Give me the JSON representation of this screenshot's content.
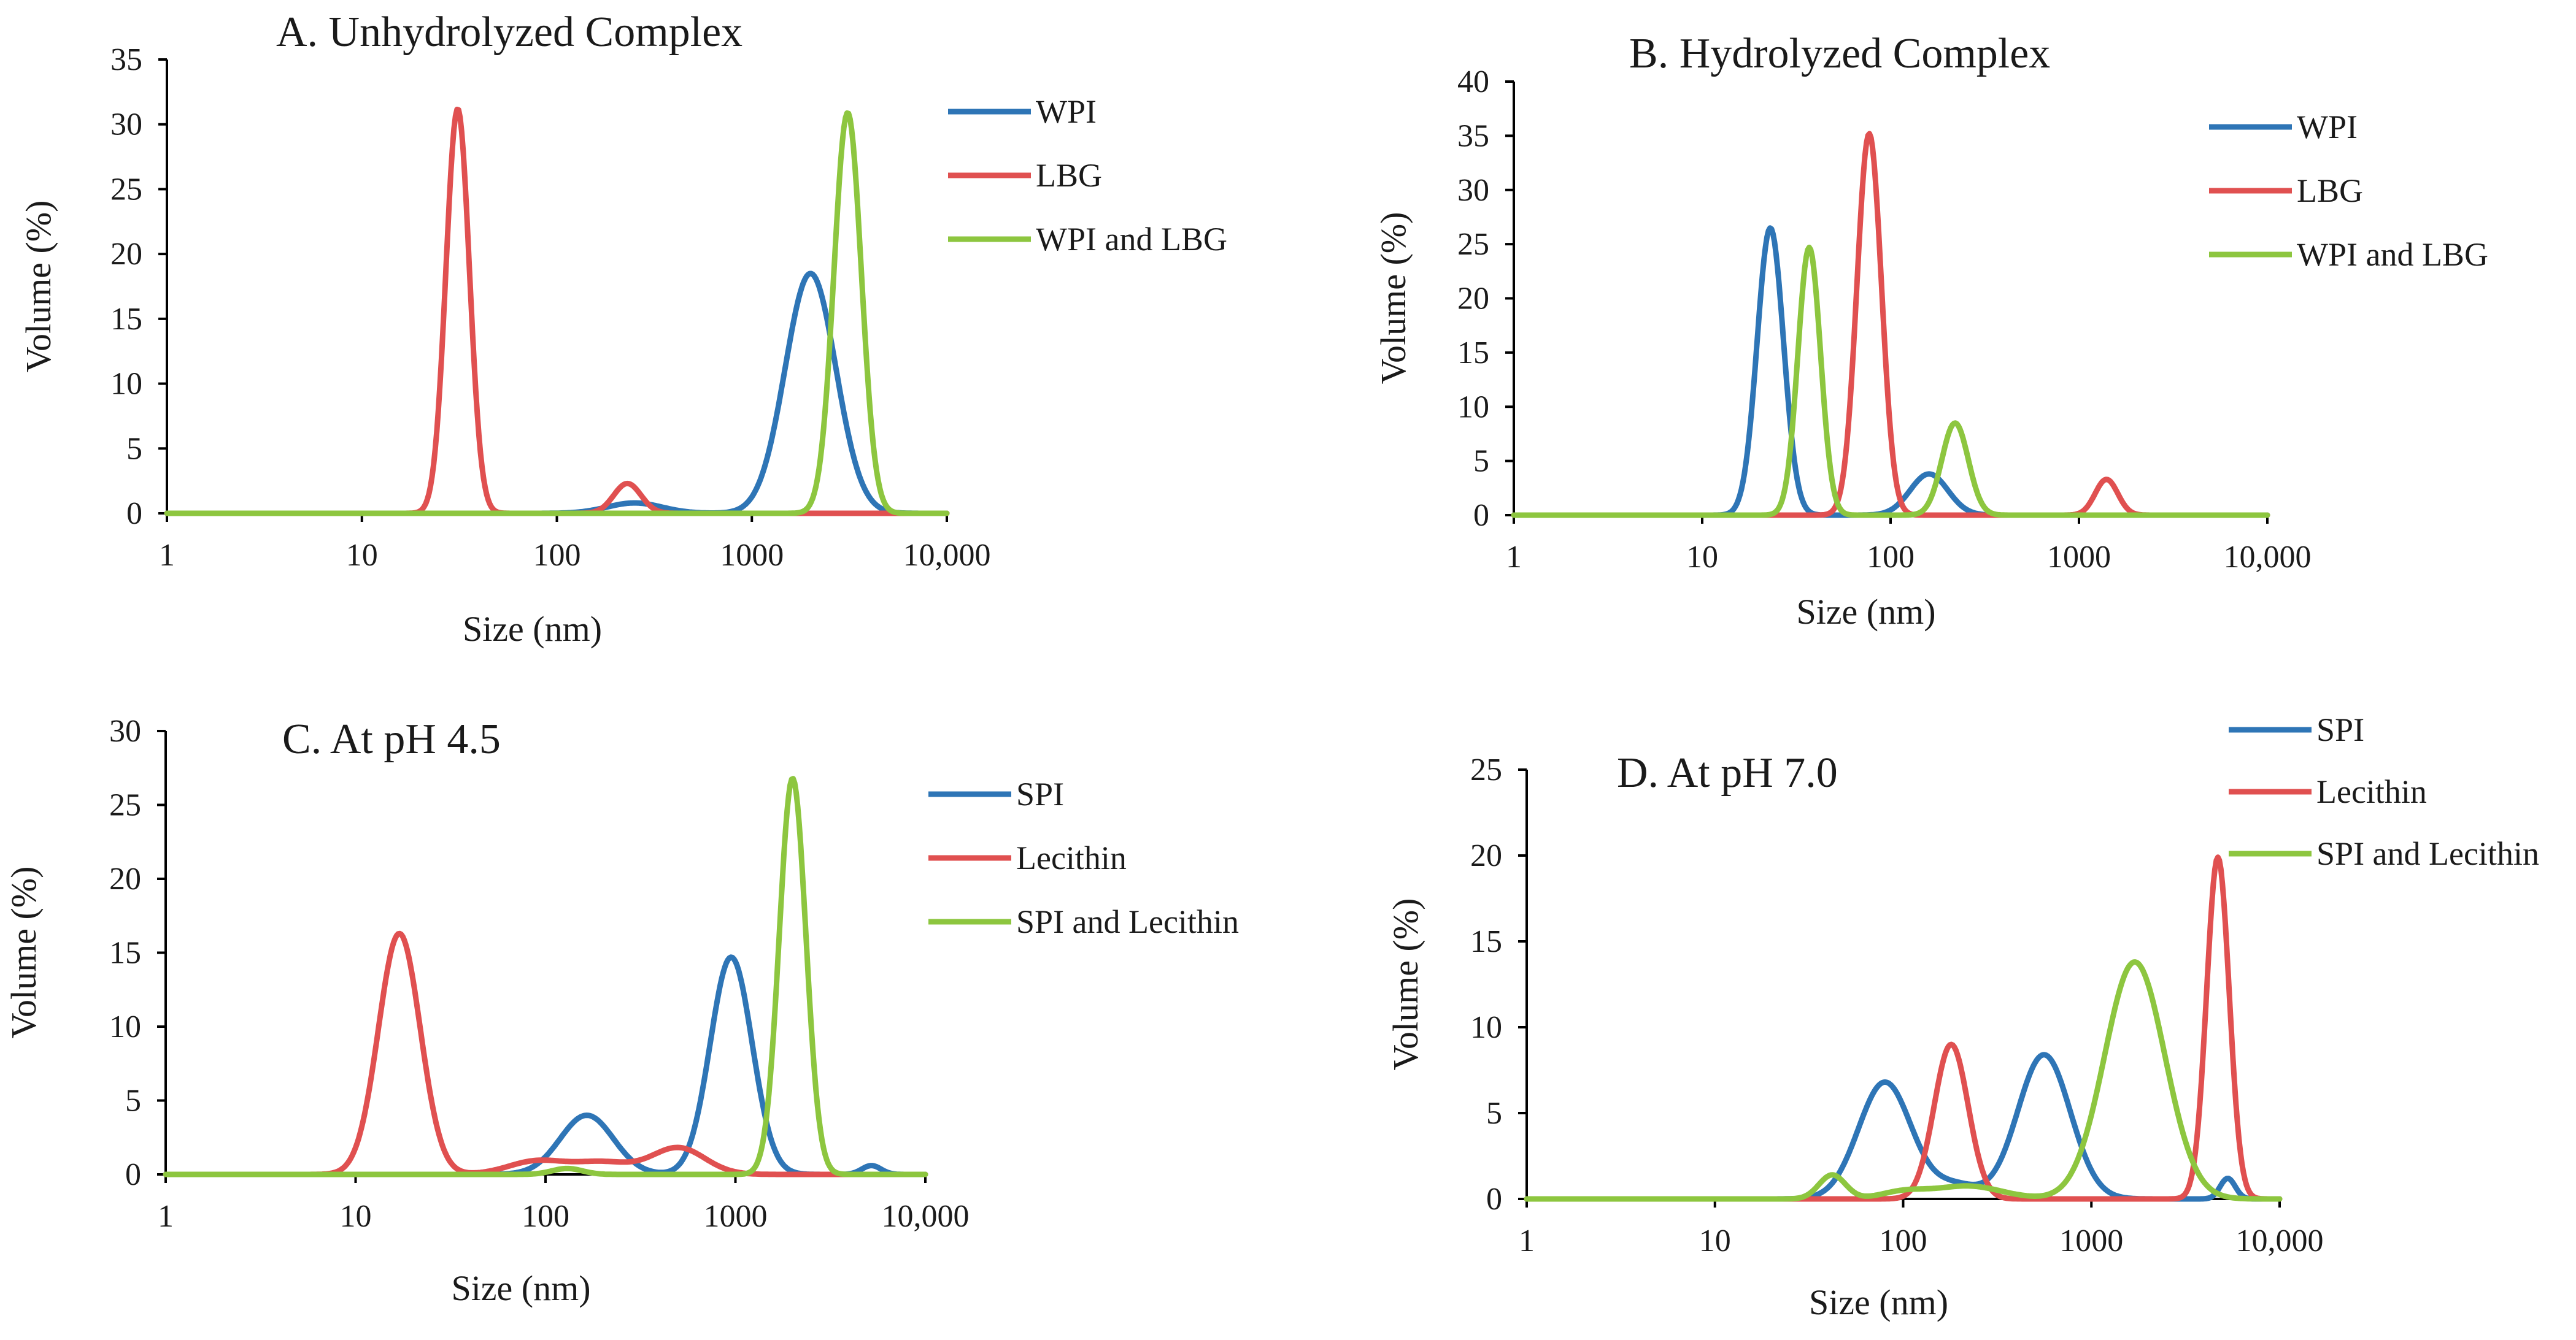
{
  "chart_data": [
    {
      "type": "line",
      "title": "A.  Unhydrolyzed Complex",
      "xlabel": "Size (nm)",
      "ylabel": "Volume (%)",
      "xscale": "log",
      "xlim": [
        1,
        10000
      ],
      "ylim": [
        0,
        35
      ],
      "xticks": [
        1,
        10,
        100,
        1000,
        10000
      ],
      "xtick_labels": [
        "1",
        "10",
        "100",
        "1000",
        "10,000"
      ],
      "yticks": [
        0,
        5,
        10,
        15,
        20,
        25,
        30,
        35
      ],
      "legend_position": "top-right",
      "series": [
        {
          "name": "WPI",
          "color": "#2E75B6",
          "peaks": [
            {
              "center": 250,
              "height": 0.8,
              "width": 0.14
            },
            {
              "center": 2000,
              "height": 18.5,
              "width": 0.13
            }
          ]
        },
        {
          "name": "LBG",
          "color": "#E05050",
          "peaks": [
            {
              "center": 31,
              "height": 31.2,
              "width": 0.06
            },
            {
              "center": 230,
              "height": 2.3,
              "width": 0.07
            }
          ]
        },
        {
          "name": "WPI and LBG",
          "color": "#8DC63F",
          "peaks": [
            {
              "center": 3100,
              "height": 30.9,
              "width": 0.07
            }
          ]
        }
      ]
    },
    {
      "type": "line",
      "title": "B.  Hydrolyzed Complex",
      "xlabel": "Size (nm)",
      "ylabel": "Volume (%)",
      "xscale": "log",
      "xlim": [
        1,
        10000
      ],
      "ylim": [
        0,
        40
      ],
      "xticks": [
        1,
        10,
        100,
        1000,
        10000
      ],
      "xtick_labels": [
        "1",
        "10",
        "100",
        "1000",
        "10,000"
      ],
      "yticks": [
        0,
        5,
        10,
        15,
        20,
        25,
        30,
        35,
        40
      ],
      "legend_position": "top-right",
      "series": [
        {
          "name": "WPI",
          "color": "#2E75B6",
          "peaks": [
            {
              "center": 23,
              "height": 26.5,
              "width": 0.07
            },
            {
              "center": 160,
              "height": 3.8,
              "width": 0.1
            }
          ]
        },
        {
          "name": "LBG",
          "color": "#E05050",
          "peaks": [
            {
              "center": 77,
              "height": 35.2,
              "width": 0.065
            },
            {
              "center": 1400,
              "height": 3.3,
              "width": 0.06
            }
          ]
        },
        {
          "name": "WPI and LBG",
          "color": "#8DC63F",
          "peaks": [
            {
              "center": 37,
              "height": 24.7,
              "width": 0.06
            },
            {
              "center": 220,
              "height": 8.5,
              "width": 0.07
            }
          ]
        }
      ]
    },
    {
      "type": "line",
      "title": "C.  At pH 4.5",
      "xlabel": "Size (nm)",
      "ylabel": "Volume (%)",
      "xscale": "log",
      "xlim": [
        1,
        10000
      ],
      "ylim": [
        0,
        30
      ],
      "xticks": [
        1,
        10,
        100,
        1000,
        10000
      ],
      "xtick_labels": [
        "1",
        "10",
        "100",
        "1000",
        "10,000"
      ],
      "yticks": [
        0,
        5,
        10,
        15,
        20,
        25,
        30
      ],
      "legend_position": "top-right",
      "series": [
        {
          "name": "SPI",
          "color": "#2E75B6",
          "peaks": [
            {
              "center": 165,
              "height": 4.0,
              "width": 0.14
            },
            {
              "center": 950,
              "height": 14.7,
              "width": 0.11
            },
            {
              "center": 5200,
              "height": 0.6,
              "width": 0.05
            }
          ]
        },
        {
          "name": "Lecithin",
          "color": "#E05050",
          "peaks": [
            {
              "center": 17,
              "height": 16.3,
              "width": 0.11
            },
            {
              "center": 90,
              "height": 0.9,
              "width": 0.15
            },
            {
              "center": 200,
              "height": 0.8,
              "width": 0.15
            },
            {
              "center": 500,
              "height": 1.8,
              "width": 0.14
            }
          ]
        },
        {
          "name": "SPI and Lecithin",
          "color": "#8DC63F",
          "peaks": [
            {
              "center": 130,
              "height": 0.4,
              "width": 0.08
            },
            {
              "center": 2000,
              "height": 26.8,
              "width": 0.07
            }
          ]
        }
      ]
    },
    {
      "type": "line",
      "title": "D. At pH 7.0",
      "xlabel": "Size (nm)",
      "ylabel": "Volume (%)",
      "xscale": "log",
      "xlim": [
        1,
        10000
      ],
      "ylim": [
        0,
        25
      ],
      "xticks": [
        1,
        10,
        100,
        1000,
        10000
      ],
      "xtick_labels": [
        "1",
        "10",
        "100",
        "1000",
        "10,000"
      ],
      "yticks": [
        0,
        5,
        10,
        15,
        20,
        25
      ],
      "legend_position": "top-right",
      "series": [
        {
          "name": "SPI",
          "color": "#2E75B6",
          "peaks": [
            {
              "center": 80,
              "height": 6.8,
              "width": 0.14
            },
            {
              "center": 190,
              "height": 0.8,
              "width": 0.12
            },
            {
              "center": 560,
              "height": 8.4,
              "width": 0.14
            },
            {
              "center": 5300,
              "height": 1.2,
              "width": 0.04
            }
          ]
        },
        {
          "name": "Lecithin",
          "color": "#E05050",
          "peaks": [
            {
              "center": 180,
              "height": 9.0,
              "width": 0.09
            },
            {
              "center": 4700,
              "height": 19.9,
              "width": 0.06
            }
          ]
        },
        {
          "name": "SPI and Lecithin",
          "color": "#8DC63F",
          "peaks": [
            {
              "center": 42,
              "height": 1.4,
              "width": 0.07
            },
            {
              "center": 100,
              "height": 0.4,
              "width": 0.12
            },
            {
              "center": 220,
              "height": 0.75,
              "width": 0.18
            },
            {
              "center": 1700,
              "height": 13.8,
              "width": 0.16
            }
          ]
        }
      ]
    }
  ]
}
